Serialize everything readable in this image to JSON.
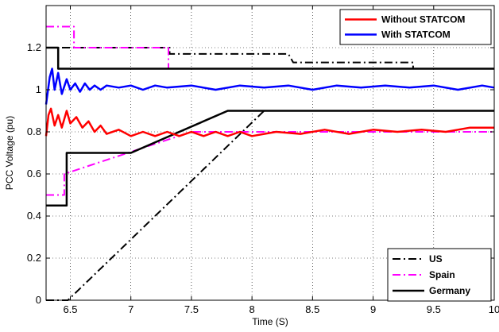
{
  "chart_data": {
    "type": "line",
    "xlabel": "Time (S)",
    "ylabel": "PCC Voltage (pu)",
    "xlim": [
      6.3,
      10
    ],
    "ylim": [
      0,
      1.4
    ],
    "xticks": [
      6.5,
      7,
      7.5,
      8,
      8.5,
      9,
      9.5,
      10
    ],
    "yticks": [
      0,
      0.2,
      0.4,
      0.6,
      0.8,
      1,
      1.2
    ],
    "xtick_labels": [
      "6.5",
      "7",
      "7.5",
      "8",
      "8.5",
      "9",
      "9.5",
      "10"
    ],
    "ytick_labels": [
      "0",
      "0.2",
      "0.4",
      "0.6",
      "0.8",
      "1",
      "1.2"
    ],
    "grid": true,
    "legends": [
      {
        "placement": "top-right",
        "entries": [
          {
            "label": "Without STATCOM",
            "series": "without"
          },
          {
            "label": "With STATCOM",
            "series": "with"
          }
        ]
      },
      {
        "placement": "bottom-right",
        "entries": [
          {
            "label": "US",
            "series": "us"
          },
          {
            "label": "Spain",
            "series": "spain"
          },
          {
            "label": "Germany",
            "series": "germany"
          }
        ]
      }
    ],
    "series": [
      {
        "id": "us",
        "name": "US",
        "color": "#000000",
        "style": "dashdot",
        "width": 2,
        "segments": [
          [
            [
              6.3,
              1.2
            ],
            [
              6.5,
              1.2
            ],
            [
              6.5,
              1.2
            ],
            [
              7.32,
              1.2
            ],
            [
              7.32,
              1.17
            ],
            [
              8.3,
              1.17
            ],
            [
              8.34,
              1.13
            ],
            [
              9.33,
              1.13
            ],
            [
              9.33,
              1.1
            ],
            [
              10,
              1.1
            ]
          ],
          [
            [
              6.3,
              0
            ],
            [
              6.48,
              0
            ],
            [
              8.1,
              0.9
            ]
          ]
        ]
      },
      {
        "id": "spain",
        "name": "Spain",
        "color": "#ff00ff",
        "style": "dashdot",
        "width": 2,
        "segments": [
          [
            [
              6.3,
              1.3
            ],
            [
              6.53,
              1.3
            ],
            [
              6.53,
              1.2
            ],
            [
              7.31,
              1.2
            ],
            [
              7.31,
              1.1
            ],
            [
              10,
              1.1
            ]
          ],
          [
            [
              6.3,
              0.5
            ],
            [
              6.45,
              0.5
            ],
            [
              6.45,
              0.6
            ],
            [
              7.5,
              0.8
            ],
            [
              10,
              0.8
            ]
          ]
        ]
      },
      {
        "id": "germany",
        "name": "Germany",
        "color": "#000000",
        "style": "solid",
        "width": 2.5,
        "segments": [
          [
            [
              6.3,
              1.2
            ],
            [
              6.4,
              1.2
            ],
            [
              6.4,
              1.1
            ],
            [
              10,
              1.1
            ]
          ],
          [
            [
              6.3,
              0.45
            ],
            [
              6.47,
              0.45
            ],
            [
              6.47,
              0.7
            ],
            [
              7.0,
              0.7
            ],
            [
              7.8,
              0.9
            ],
            [
              10,
              0.9
            ]
          ]
        ]
      },
      {
        "id": "with",
        "name": "With STATCOM",
        "color": "#0000ff",
        "style": "solid",
        "width": 2.5,
        "points": [
          [
            6.3,
            0.93
          ],
          [
            6.33,
            1.06
          ],
          [
            6.35,
            1.1
          ],
          [
            6.37,
            1.0
          ],
          [
            6.4,
            1.08
          ],
          [
            6.43,
            0.98
          ],
          [
            6.47,
            1.05
          ],
          [
            6.5,
            1.0
          ],
          [
            6.54,
            1.03
          ],
          [
            6.58,
            0.99
          ],
          [
            6.62,
            1.03
          ],
          [
            6.66,
            1.0
          ],
          [
            6.7,
            1.02
          ],
          [
            6.75,
            1.0
          ],
          [
            6.8,
            1.02
          ],
          [
            6.9,
            1.01
          ],
          [
            7.0,
            1.02
          ],
          [
            7.1,
            1.0
          ],
          [
            7.2,
            1.02
          ],
          [
            7.3,
            1.01
          ],
          [
            7.5,
            1.02
          ],
          [
            7.7,
            1.0
          ],
          [
            7.9,
            1.02
          ],
          [
            8.1,
            1.01
          ],
          [
            8.3,
            1.02
          ],
          [
            8.5,
            1.0
          ],
          [
            8.7,
            1.02
          ],
          [
            8.9,
            1.01
          ],
          [
            9.1,
            1.02
          ],
          [
            9.3,
            1.01
          ],
          [
            9.5,
            1.02
          ],
          [
            9.7,
            1.0
          ],
          [
            9.9,
            1.02
          ],
          [
            10,
            1.01
          ]
        ]
      },
      {
        "id": "without",
        "name": "Without STATCOM",
        "color": "#ff0000",
        "style": "solid",
        "width": 2.5,
        "points": [
          [
            6.3,
            0.78
          ],
          [
            6.32,
            0.88
          ],
          [
            6.34,
            0.91
          ],
          [
            6.37,
            0.83
          ],
          [
            6.4,
            0.88
          ],
          [
            6.43,
            0.82
          ],
          [
            6.47,
            0.9
          ],
          [
            6.5,
            0.84
          ],
          [
            6.55,
            0.87
          ],
          [
            6.6,
            0.82
          ],
          [
            6.65,
            0.85
          ],
          [
            6.7,
            0.8
          ],
          [
            6.75,
            0.83
          ],
          [
            6.8,
            0.79
          ],
          [
            6.9,
            0.81
          ],
          [
            7.0,
            0.78
          ],
          [
            7.1,
            0.8
          ],
          [
            7.2,
            0.78
          ],
          [
            7.3,
            0.8
          ],
          [
            7.4,
            0.78
          ],
          [
            7.5,
            0.8
          ],
          [
            7.6,
            0.78
          ],
          [
            7.7,
            0.8
          ],
          [
            7.8,
            0.78
          ],
          [
            7.9,
            0.8
          ],
          [
            8.0,
            0.78
          ],
          [
            8.2,
            0.8
          ],
          [
            8.4,
            0.79
          ],
          [
            8.6,
            0.81
          ],
          [
            8.8,
            0.79
          ],
          [
            9.0,
            0.81
          ],
          [
            9.2,
            0.8
          ],
          [
            9.4,
            0.81
          ],
          [
            9.6,
            0.8
          ],
          [
            9.8,
            0.82
          ],
          [
            10,
            0.82
          ]
        ]
      }
    ]
  }
}
